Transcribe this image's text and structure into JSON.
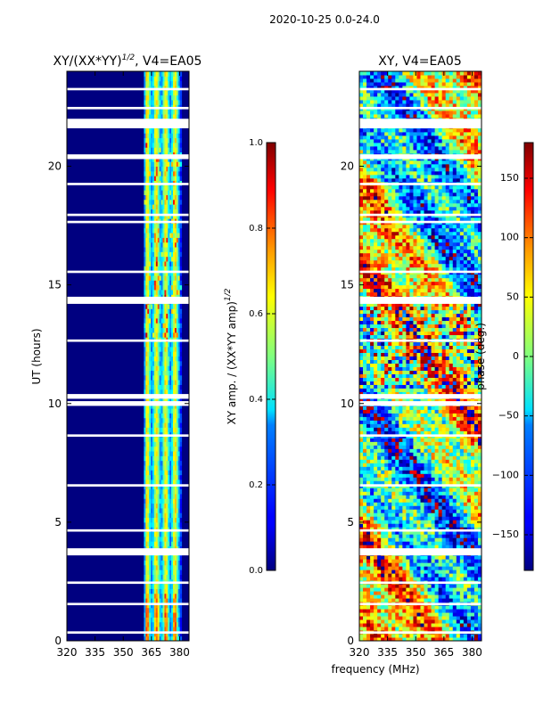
{
  "suptitle": "2020-10-25 0.0-24.0",
  "chart_data": [
    {
      "type": "heatmap",
      "title": "XY/(XX*YY)^1/2, V4=EA05",
      "title_main": "XY/(XX*YY)",
      "title_exp": "1/2",
      "title_rest": ", V4=EA05",
      "xlabel": "",
      "ylabel": "UT (hours)",
      "xlim": [
        320,
        385
      ],
      "ylim": [
        0,
        24
      ],
      "xticks": [
        320,
        335,
        350,
        365,
        380
      ],
      "yticks": [
        0,
        5,
        10,
        15,
        20
      ],
      "xtick_labels": [
        "320",
        "335",
        "350",
        "365",
        "380"
      ],
      "ytick_labels": [
        "0",
        "5",
        "10",
        "15",
        "20"
      ],
      "colorbar": {
        "label": "XY amp. / (XX*YY amp)^1/2",
        "label_main": "XY amp. / (XX*YY amp)",
        "label_exp": "1/2",
        "range": [
          0.0,
          1.0
        ],
        "ticks": [
          0.0,
          0.2,
          0.4,
          0.6,
          0.8,
          1.0
        ],
        "tick_labels": [
          "0.0",
          "0.2",
          "0.4",
          "0.6",
          "0.8",
          "1.0"
        ],
        "colormap": "jet"
      },
      "bright_band_MHz": [
        361,
        381
      ],
      "typical_value_outside_band": 0.0,
      "typical_value_in_band": 0.45
    },
    {
      "type": "heatmap",
      "title": "XY, V4=EA05",
      "xlabel": "frequency (MHz)",
      "ylabel": "",
      "xlim": [
        320,
        385
      ],
      "ylim": [
        0,
        24
      ],
      "xticks": [
        320,
        335,
        350,
        365,
        380
      ],
      "yticks": [
        0,
        5,
        10,
        15,
        20
      ],
      "xtick_labels": [
        "320",
        "335",
        "350",
        "365",
        "380"
      ],
      "ytick_labels": [
        "0",
        "5",
        "10",
        "15",
        "20"
      ],
      "colorbar": {
        "label": "phase (deg.)",
        "range": [
          -180,
          180
        ],
        "ticks": [
          -150,
          -100,
          -50,
          0,
          50,
          100,
          150
        ],
        "tick_labels": [
          "−150",
          "−100",
          "−50",
          "0",
          "50",
          "100",
          "150"
        ],
        "colormap": "jet"
      }
    }
  ],
  "flagged_gaps_hours": [
    [
      23.2,
      23.3
    ],
    [
      22.4,
      22.5
    ],
    [
      21.6,
      22.0
    ],
    [
      20.3,
      20.5
    ],
    [
      19.2,
      19.3
    ],
    [
      17.9,
      18.0
    ],
    [
      17.6,
      17.7
    ],
    [
      15.5,
      15.6
    ],
    [
      14.2,
      14.5
    ],
    [
      12.6,
      12.7
    ],
    [
      10.2,
      10.4
    ],
    [
      9.9,
      10.1
    ],
    [
      8.6,
      8.7
    ],
    [
      6.5,
      6.6
    ],
    [
      4.6,
      4.7
    ],
    [
      3.6,
      3.9
    ],
    [
      2.4,
      2.5
    ],
    [
      1.5,
      1.6
    ],
    [
      0.3,
      0.4
    ]
  ],
  "colors": {
    "jet_low": "#00007f",
    "jet_mid": "#7fff7f",
    "jet_high": "#7f0000"
  }
}
